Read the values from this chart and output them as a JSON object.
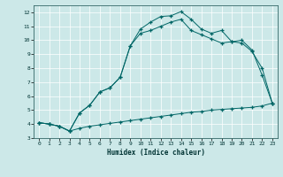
{
  "xlabel": "Humidex (Indice chaleur)",
  "background_color": "#cce8e8",
  "grid_color": "#ffffff",
  "line_color": "#006666",
  "ylim": [
    3,
    12.5
  ],
  "xlim": [
    -0.5,
    23.5
  ],
  "yticks": [
    3,
    4,
    5,
    6,
    7,
    8,
    9,
    10,
    11,
    12
  ],
  "xticks": [
    0,
    1,
    2,
    3,
    4,
    5,
    6,
    7,
    8,
    9,
    10,
    11,
    12,
    13,
    14,
    15,
    16,
    17,
    18,
    19,
    20,
    21,
    22,
    23
  ],
  "line1_x": [
    0,
    1,
    2,
    3,
    4,
    5,
    6,
    7,
    8,
    9,
    10,
    11,
    12,
    13,
    14,
    15,
    16,
    17,
    18,
    19,
    20,
    21,
    22,
    23
  ],
  "line1_y": [
    4.1,
    4.0,
    3.85,
    3.5,
    3.7,
    3.85,
    3.95,
    4.05,
    4.15,
    4.25,
    4.35,
    4.45,
    4.55,
    4.65,
    4.75,
    4.85,
    4.9,
    5.0,
    5.05,
    5.1,
    5.15,
    5.2,
    5.3,
    5.5
  ],
  "line2_x": [
    0,
    1,
    2,
    3,
    4,
    5,
    6,
    7,
    8,
    9,
    10,
    11,
    12,
    13,
    14,
    15,
    16,
    17,
    18,
    19,
    20,
    21,
    22,
    23
  ],
  "line2_y": [
    4.1,
    4.0,
    3.85,
    3.5,
    4.8,
    5.35,
    6.3,
    6.6,
    7.35,
    9.6,
    10.5,
    10.7,
    11.0,
    11.3,
    11.5,
    10.7,
    10.4,
    10.1,
    9.8,
    9.9,
    9.8,
    9.2,
    8.0,
    5.5
  ],
  "line3_x": [
    0,
    1,
    2,
    3,
    4,
    5,
    6,
    7,
    8,
    9,
    10,
    11,
    12,
    13,
    14,
    15,
    16,
    17,
    18,
    19,
    20,
    21,
    22,
    23
  ],
  "line3_y": [
    4.1,
    4.0,
    3.85,
    3.5,
    4.8,
    5.35,
    6.3,
    6.6,
    7.35,
    9.6,
    10.8,
    11.3,
    11.7,
    11.75,
    12.05,
    11.5,
    10.8,
    10.5,
    10.7,
    9.9,
    10.0,
    9.3,
    7.5,
    5.5
  ]
}
